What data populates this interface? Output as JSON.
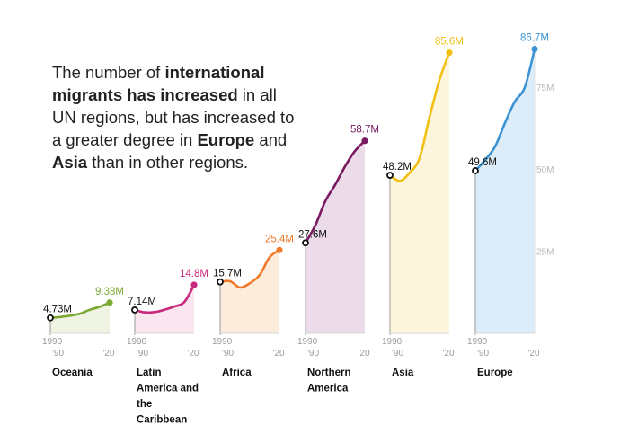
{
  "headline": {
    "t1": "The number of ",
    "b1": "international migrants has increased",
    "t2": " in all UN regions, but has increased to a greater degree in ",
    "b2": "Europe",
    "t3": " and ",
    "b3": "Asia",
    "t4": " than in other regions."
  },
  "chart_data": {
    "type": "area",
    "y_unit": "M",
    "ylim": [
      0,
      90
    ],
    "y_ticks": [
      "25M",
      "50M",
      "75M"
    ],
    "x_start_label": "1990",
    "x_sub_labels": [
      "'90",
      "'20"
    ],
    "series": [
      {
        "name": "Oceania",
        "name_lines": [
          "Oceania"
        ],
        "color": "#7aa832",
        "fill": "#eef3e2",
        "start_label": "4.73M",
        "end_label": "9.38M",
        "x": [
          1990,
          1995,
          2000,
          2005,
          2010,
          2015,
          2020
        ],
        "values": [
          4.73,
          5.0,
          5.4,
          6.0,
          7.2,
          8.1,
          9.38
        ]
      },
      {
        "name": "Latin America and the Caribbean",
        "name_lines": [
          "Latin",
          "America and",
          "the",
          "Caribbean"
        ],
        "color": "#c8297c",
        "fill": "#fae6ef",
        "start_label": "7.14M",
        "end_label": "14.8M",
        "x": [
          1990,
          1995,
          2000,
          2005,
          2010,
          2015,
          2020
        ],
        "values": [
          7.14,
          6.4,
          6.5,
          7.2,
          8.2,
          9.5,
          14.8
        ]
      },
      {
        "name": "Africa",
        "name_lines": [
          "Africa"
        ],
        "color": "#ee7a2a",
        "fill": "#fdebdc",
        "start_label": "15.7M",
        "end_label": "25.4M",
        "x": [
          1990,
          1995,
          2000,
          2005,
          2010,
          2015,
          2020
        ],
        "values": [
          15.7,
          15.9,
          14.0,
          15.3,
          17.8,
          23.2,
          25.4
        ]
      },
      {
        "name": "Northern America",
        "name_lines": [
          "Northern",
          "America"
        ],
        "color": "#7a1a62",
        "fill": "#ecdcea",
        "start_label": "27.6M",
        "end_label": "58.7M",
        "x": [
          1990,
          1995,
          2000,
          2005,
          2010,
          2015,
          2020
        ],
        "values": [
          27.6,
          33.0,
          40.3,
          45.3,
          50.9,
          55.6,
          58.7
        ]
      },
      {
        "name": "Asia",
        "name_lines": [
          "Asia"
        ],
        "color": "#f2c012",
        "fill": "#fdf6dc",
        "start_label": "48.2M",
        "end_label": "85.6M",
        "x": [
          1990,
          1995,
          2000,
          2005,
          2010,
          2015,
          2020
        ],
        "values": [
          48.2,
          46.5,
          49.0,
          53.5,
          65.9,
          77.2,
          85.6
        ]
      },
      {
        "name": "Europe",
        "name_lines": [
          "Europe"
        ],
        "color": "#3b93d3",
        "fill": "#dcedf9",
        "start_label": "49.6M",
        "end_label": "86.7M",
        "x": [
          1990,
          1995,
          2000,
          2005,
          2010,
          2015,
          2020
        ],
        "values": [
          49.6,
          52.9,
          57.0,
          64.2,
          70.7,
          75.0,
          86.7
        ]
      }
    ]
  }
}
